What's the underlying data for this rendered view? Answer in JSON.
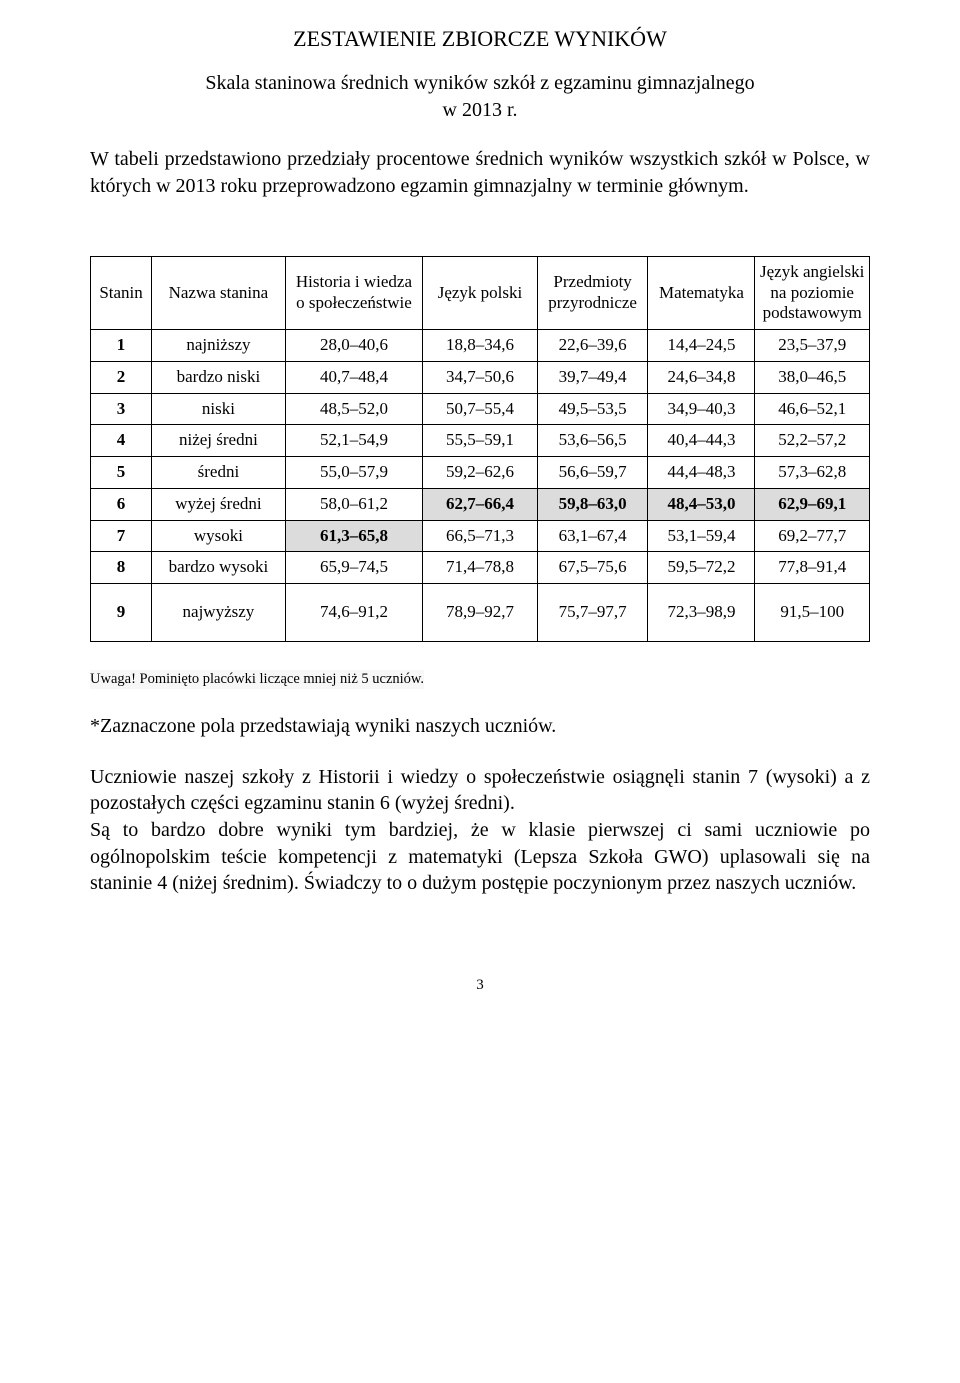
{
  "title": "ZESTAWIENIE ZBIORCZE WYNIKÓW",
  "subtitle_line1": "Skala staninowa średnich wyników szkół z egzaminu gimnazjalnego",
  "subtitle_line2": "w 2013 r.",
  "intro": "W tabeli przedstawiono przedziały procentowe średnich wyników wszystkich szkół w Polsce, w których w 2013 roku przeprowadzono egzamin gimnazjalny w terminie głównym.",
  "columns": {
    "c0": "Stanin",
    "c1": "Nazwa stanina",
    "c2": "Historia i wiedza o społeczeństwie",
    "c3": "Język polski",
    "c4": "Przedmioty przyrodnicze",
    "c5": "Matematyka",
    "c6": "Język angielski na poziomie podstawowym"
  },
  "rows": [
    {
      "n": "1",
      "name": "najniższy",
      "v": [
        "28,0–40,6",
        "18,8–34,6",
        "22,6–39,6",
        "14,4–24,5",
        "23,5–37,9"
      ],
      "hl": [
        false,
        false,
        false,
        false,
        false
      ]
    },
    {
      "n": "2",
      "name": "bardzo niski",
      "v": [
        "40,7–48,4",
        "34,7–50,6",
        "39,7–49,4",
        "24,6–34,8",
        "38,0–46,5"
      ],
      "hl": [
        false,
        false,
        false,
        false,
        false
      ]
    },
    {
      "n": "3",
      "name": "niski",
      "v": [
        "48,5–52,0",
        "50,7–55,4",
        "49,5–53,5",
        "34,9–40,3",
        "46,6–52,1"
      ],
      "hl": [
        false,
        false,
        false,
        false,
        false
      ]
    },
    {
      "n": "4",
      "name": "niżej średni",
      "v": [
        "52,1–54,9",
        "55,5–59,1",
        "53,6–56,5",
        "40,4–44,3",
        "52,2–57,2"
      ],
      "hl": [
        false,
        false,
        false,
        false,
        false
      ]
    },
    {
      "n": "5",
      "name": "średni",
      "v": [
        "55,0–57,9",
        "59,2–62,6",
        "56,6–59,7",
        "44,4–48,3",
        "57,3–62,8"
      ],
      "hl": [
        false,
        false,
        false,
        false,
        false
      ]
    },
    {
      "n": "6",
      "name": "wyżej średni",
      "v": [
        "58,0–61,2",
        "62,7–66,4",
        "59,8–63,0",
        "48,4–53,0",
        "62,9–69,1"
      ],
      "hl": [
        false,
        true,
        true,
        true,
        true
      ]
    },
    {
      "n": "7",
      "name": "wysoki",
      "v": [
        "61,3–65,8",
        "66,5–71,3",
        "63,1–67,4",
        "53,1–59,4",
        "69,2–77,7"
      ],
      "hl": [
        true,
        false,
        false,
        false,
        false
      ]
    },
    {
      "n": "8",
      "name": "bardzo wysoki",
      "v": [
        "65,9–74,5",
        "71,4–78,8",
        "67,5–75,6",
        "59,5–72,2",
        "77,8–91,4"
      ],
      "hl": [
        false,
        false,
        false,
        false,
        false
      ]
    },
    {
      "n": "9",
      "name": "najwyższy",
      "v": [
        "74,6–91,2",
        "78,9–92,7",
        "75,7–97,7",
        "72,3–98,9",
        "91,5–100"
      ],
      "hl": [
        false,
        false,
        false,
        false,
        false
      ],
      "tall": true
    }
  ],
  "note1": "Uwaga! Pominięto placówki liczące mniej niż 5 uczniów.",
  "note2": "*Zaznaczone pola przedstawiają wyniki naszych uczniów.",
  "paragraph": "Uczniowie naszej szkoły z Historii i wiedzy o społeczeństwie osiągnęli stanin 7 (wysoki) a z pozostałych części egzaminu stanin 6 (wyżej średni).\nSą to bardzo dobre wyniki tym bardziej, że w klasie pierwszej ci sami uczniowie po ogólnopolskim teście kompetencji z matematyki (Lepsza Szkoła GWO) uplasowali się na staninie 4 (niżej średnim). Świadczy to o dużym postępie poczynionym przez naszych uczniów.",
  "page_number": "3",
  "style": {
    "highlight_bg": "#dcdcdc",
    "page_bg": "#ffffff",
    "text_color": "#000000",
    "note1_bg": "#f7f7f7"
  }
}
